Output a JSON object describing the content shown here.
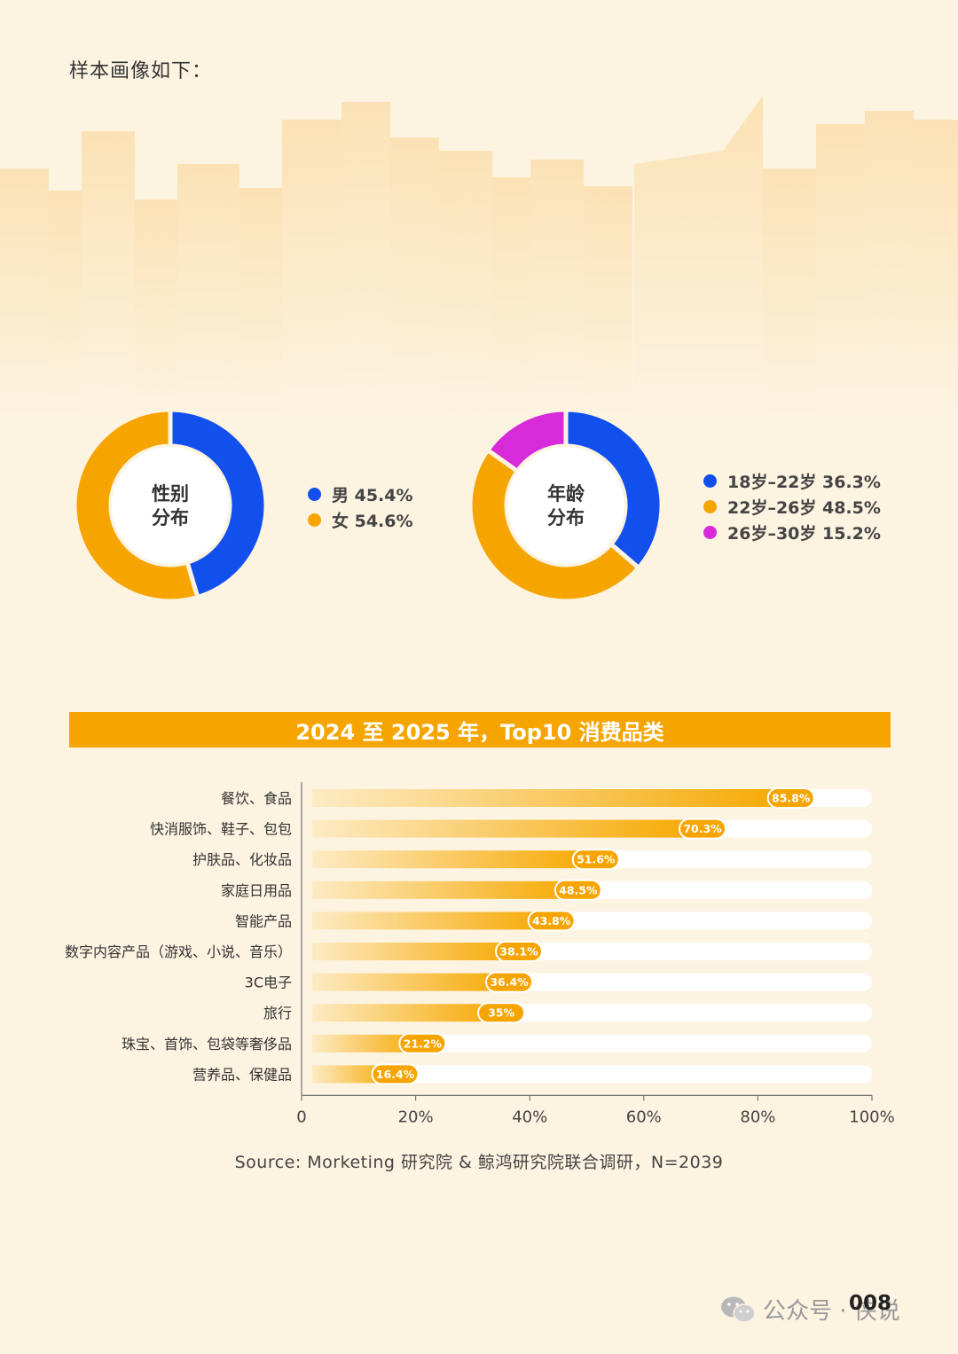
{
  "intro_text": "样本画像如下：",
  "colors": {
    "blue": "#1250ee",
    "orange": "#f6a500",
    "magenta": "#d72ad8",
    "bar_light": "#fde4b0",
    "banner": "#f6a500"
  },
  "chart_data": [
    {
      "type": "pie",
      "center_label": [
        "性别",
        "分布"
      ],
      "slices": [
        {
          "label": "男",
          "value": 45.4,
          "display": "男 45.4%",
          "color": "#1250ee"
        },
        {
          "label": "女",
          "value": 54.6,
          "display": "女 54.6%",
          "color": "#f6a500"
        }
      ]
    },
    {
      "type": "pie",
      "center_label": [
        "年龄",
        "分布"
      ],
      "slices": [
        {
          "label": "18岁–22岁",
          "value": 36.3,
          "display": "18岁–22岁 36.3%",
          "color": "#1250ee"
        },
        {
          "label": "22岁–26岁",
          "value": 48.5,
          "display": "22岁–26岁 48.5%",
          "color": "#f6a500"
        },
        {
          "label": "26岁–30岁",
          "value": 15.2,
          "display": "26岁–30岁 15.2%",
          "color": "#d72ad8"
        }
      ]
    },
    {
      "type": "bar",
      "orientation": "horizontal",
      "title": "2024 至 2025 年，Top10 消费品类",
      "categories": [
        "餐饮、食品",
        "快消服饰、鞋子、包包",
        "护肤品、化妆品",
        "家庭日用品",
        "智能产品",
        "数字内容产品（游戏、小说、音乐）",
        "3C电子",
        "旅行",
        "珠宝、首饰、包袋等奢侈品",
        "营养品、保健品"
      ],
      "values": [
        85.8,
        70.3,
        51.6,
        48.5,
        43.8,
        38.1,
        36.4,
        35,
        21.2,
        16.4
      ],
      "value_labels": [
        "85.8%",
        "70.3%",
        "51.6%",
        "48.5%",
        "43.8%",
        "38.1%",
        "36.4%",
        "35%",
        "21.2%",
        "16.4%"
      ],
      "xlim": [
        0,
        100
      ],
      "x_ticks": [
        "0",
        "20%",
        "40%",
        "60%",
        "80%",
        "100%"
      ]
    }
  ],
  "source": "Source: Morketing 研究院 & 鲸鸿研究院联合调研，N=2039",
  "page_number": "008",
  "watermark": "公众号 · 侠说"
}
